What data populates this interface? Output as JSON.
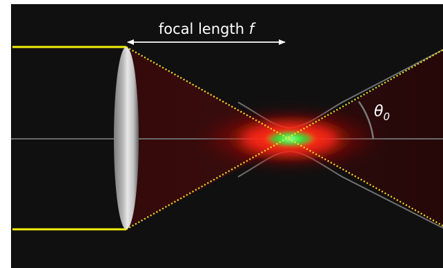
{
  "labels": {
    "focal_length_text": "focal length ",
    "focal_length_symbol": "f",
    "angle_symbol": "θ",
    "angle_subscript": "0"
  },
  "colors": {
    "background": "#101010",
    "incoming_beam": "#f4f00a",
    "focus_core": "#2dff39",
    "focus_glow": "#ff1a10",
    "optical_axis": "#6a6a6a",
    "lens": "#c9c9c9",
    "dotted_asymptote": "#f0ec2a",
    "text": "#ffffff"
  }
}
